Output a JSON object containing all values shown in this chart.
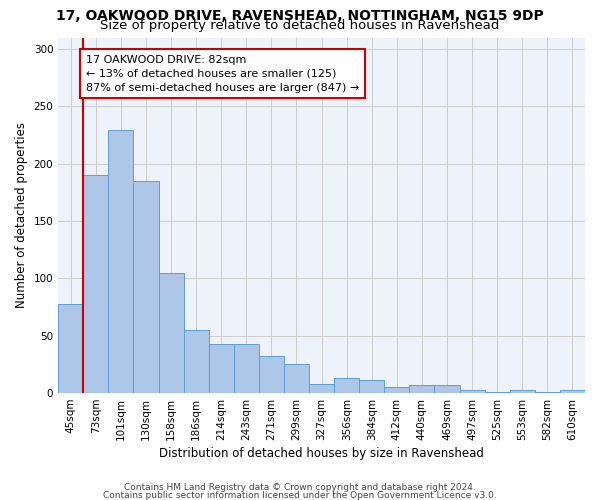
{
  "title_line1": "17, OAKWOOD DRIVE, RAVENSHEAD, NOTTINGHAM, NG15 9DP",
  "title_line2": "Size of property relative to detached houses in Ravenshead",
  "xlabel": "Distribution of detached houses by size in Ravenshead",
  "ylabel": "Number of detached properties",
  "categories": [
    "45sqm",
    "73sqm",
    "101sqm",
    "130sqm",
    "158sqm",
    "186sqm",
    "214sqm",
    "243sqm",
    "271sqm",
    "299sqm",
    "327sqm",
    "356sqm",
    "384sqm",
    "412sqm",
    "440sqm",
    "469sqm",
    "497sqm",
    "525sqm",
    "553sqm",
    "582sqm",
    "610sqm"
  ],
  "values": [
    78,
    190,
    229,
    185,
    105,
    55,
    43,
    43,
    32,
    25,
    8,
    13,
    11,
    5,
    7,
    7,
    3,
    1,
    3,
    1,
    3
  ],
  "bar_color": "#aec6e8",
  "bar_edge_color": "#5a9fd4",
  "vline_color": "#cc0000",
  "annotation_text": "17 OAKWOOD DRIVE: 82sqm\n← 13% of detached houses are smaller (125)\n87% of semi-detached houses are larger (847) →",
  "annotation_box_color": "#ffffff",
  "annotation_box_edge": "#cc0000",
  "ylim": [
    0,
    310
  ],
  "grid_color": "#cccccc",
  "background_color": "#eef2fb",
  "footer_line1": "Contains HM Land Registry data © Crown copyright and database right 2024.",
  "footer_line2": "Contains public sector information licensed under the Open Government Licence v3.0.",
  "title_fontsize": 10,
  "subtitle_fontsize": 9.5,
  "axis_label_fontsize": 8.5,
  "tick_fontsize": 7.5,
  "annotation_fontsize": 8,
  "footer_fontsize": 6.5
}
